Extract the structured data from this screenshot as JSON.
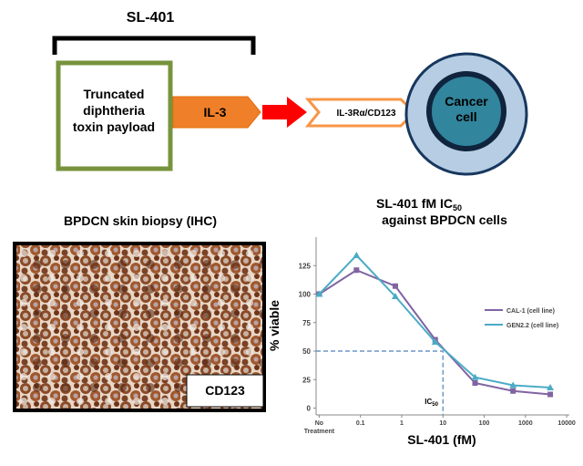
{
  "header": {
    "title": "SL-401"
  },
  "diagram": {
    "payload": [
      "Truncated",
      "diphtheria",
      "toxin payload"
    ],
    "ligand": "IL-3",
    "receptor": "IL-3Rα/CD123",
    "cell": [
      "Cancer",
      "cell"
    ]
  },
  "biopsy": {
    "title": "BPDCN skin biopsy (IHC)",
    "label": "CD123"
  },
  "chart_data": {
    "type": "line",
    "title": "SL-401 fM IC",
    "title_subscript": "50",
    "subtitle": "against BPDCN cells",
    "x_label": "SL-401 (fM)",
    "y_label": "% viable",
    "x_log": true,
    "x": [
      0.01,
      0.08,
      0.7,
      6.5,
      60,
      500,
      4000
    ],
    "series": [
      {
        "name": "CAL-1 (cell line)",
        "color": "#8064a2",
        "marker": "square",
        "values": [
          100,
          121,
          107,
          60,
          22,
          15,
          12
        ]
      },
      {
        "name": "GEN2.2 (cell line)",
        "color": "#4bacc6",
        "marker": "triangle",
        "values": [
          100,
          134,
          98,
          58,
          27,
          20,
          18
        ]
      }
    ],
    "xlim": [
      0.0084,
      11600
    ],
    "ylim": [
      -6,
      150
    ],
    "xticks": [
      {
        "value": 0.01,
        "label": "No Treatment"
      },
      0.1,
      1,
      10,
      100,
      1000,
      10000
    ],
    "yticks": [
      0,
      25,
      50,
      75,
      100,
      125
    ],
    "reference": {
      "x": 10,
      "y": 50,
      "label": "IC",
      "subscript": "50"
    }
  }
}
